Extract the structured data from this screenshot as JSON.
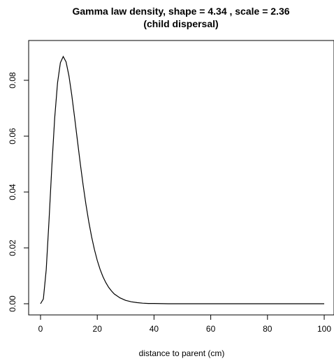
{
  "chart_data": {
    "type": "line",
    "title": "Gamma law density, shape =  4.34 , scale =  2.36",
    "subtitle": "(child dispersal)",
    "xlabel": "distance to parent (cm)",
    "ylabel": "",
    "xlim": [
      0,
      100
    ],
    "ylim": [
      0,
      0.09
    ],
    "x_ticks": [
      0,
      20,
      40,
      60,
      80,
      100
    ],
    "x_tick_labels": [
      "0",
      "20",
      "40",
      "60",
      "80",
      "100"
    ],
    "y_ticks": [
      0.0,
      0.02,
      0.04,
      0.06,
      0.08
    ],
    "y_tick_labels": [
      "0.00",
      "0.02",
      "0.04",
      "0.06",
      "0.08"
    ],
    "grid": false,
    "series": [
      {
        "distribution": "gamma",
        "shape": 4.34,
        "scale": 2.36,
        "x": [
          0,
          1,
          2,
          3,
          4,
          5,
          6,
          7,
          8,
          9,
          10,
          11,
          12,
          13,
          14,
          15,
          16,
          17,
          18,
          19,
          20,
          21,
          22,
          23,
          24,
          25,
          26,
          28,
          30,
          32,
          34,
          36,
          38,
          40,
          45,
          50,
          60,
          70,
          80,
          90,
          100
        ],
        "values": [
          0,
          0.0017,
          0.0121,
          0.0299,
          0.0494,
          0.0666,
          0.0791,
          0.0863,
          0.0885,
          0.0866,
          0.0817,
          0.0748,
          0.0668,
          0.0585,
          0.0503,
          0.0426,
          0.0356,
          0.0294,
          0.024,
          0.0194,
          0.0155,
          0.0123,
          0.0097,
          0.0076,
          0.0059,
          0.0046,
          0.0035,
          0.0021,
          0.0012,
          0.0007,
          0.0004,
          0.0002,
          0.0001,
          0.0001,
          0,
          0,
          0,
          0,
          0,
          0,
          0
        ]
      }
    ]
  }
}
